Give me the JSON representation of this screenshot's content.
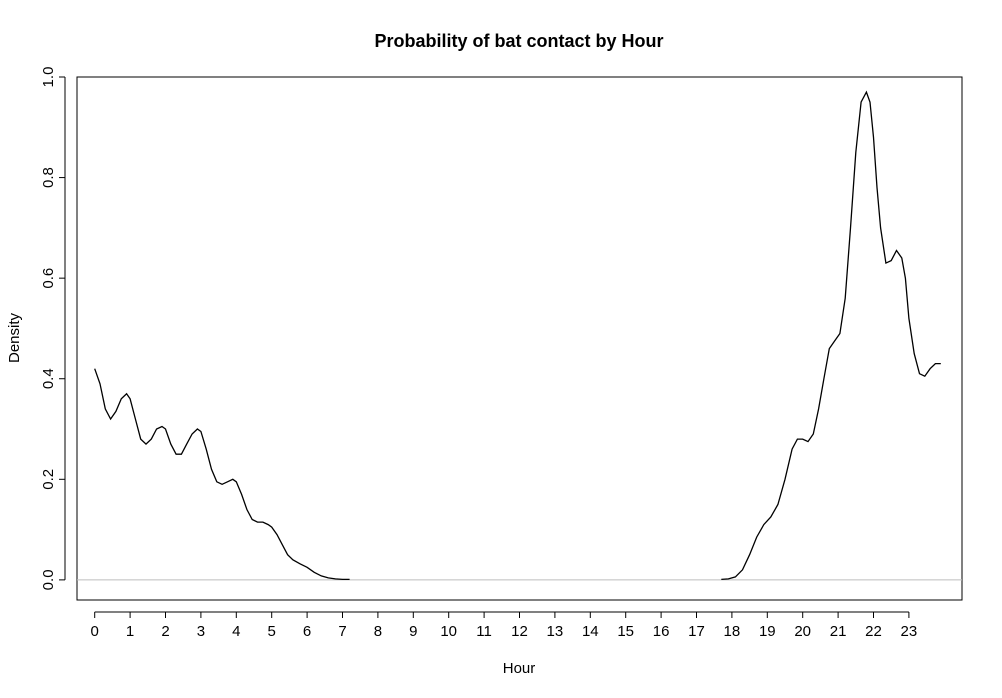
{
  "chart_data": {
    "type": "line",
    "title": "Probability of bat contact by Hour",
    "xlabel": "Hour",
    "ylabel": "Density",
    "xlim": [
      -0.5,
      24.5
    ],
    "ylim": [
      -0.04,
      1.0
    ],
    "x_ticks": [
      0,
      1,
      2,
      3,
      4,
      5,
      6,
      7,
      8,
      9,
      10,
      11,
      12,
      13,
      14,
      15,
      16,
      17,
      18,
      19,
      20,
      21,
      22,
      23
    ],
    "x_tick_labels": [
      "0",
      "1",
      "2",
      "3",
      "4",
      "5",
      "6",
      "7",
      "8",
      "9",
      "10",
      "11",
      "12",
      "13",
      "14",
      "15",
      "16",
      "17",
      "18",
      "19",
      "20",
      "21",
      "22",
      "23"
    ],
    "y_ticks": [
      0.0,
      0.2,
      0.4,
      0.6,
      0.8,
      1.0
    ],
    "y_tick_labels": [
      "0.0",
      "0.2",
      "0.4",
      "0.6",
      "0.8",
      "1.0"
    ],
    "baseline": 0,
    "series": [
      {
        "name": "density",
        "color": "#000000",
        "x": [
          0.0,
          0.15,
          0.3,
          0.45,
          0.6,
          0.75,
          0.9,
          1.0,
          1.15,
          1.3,
          1.45,
          1.6,
          1.75,
          1.9,
          2.0,
          2.15,
          2.3,
          2.45,
          2.6,
          2.75,
          2.9,
          3.0,
          3.15,
          3.3,
          3.45,
          3.6,
          3.75,
          3.9,
          4.0,
          4.15,
          4.3,
          4.45,
          4.6,
          4.75,
          4.9,
          5.0,
          5.15,
          5.3,
          5.45,
          5.6,
          5.8,
          6.0,
          6.2,
          6.4,
          6.6,
          6.8,
          7.0,
          7.2,
          17.7,
          17.9,
          18.1,
          18.3,
          18.5,
          18.7,
          18.9,
          19.1,
          19.3,
          19.5,
          19.7,
          19.85,
          20.0,
          20.15,
          20.3,
          20.45,
          20.6,
          20.75,
          20.9,
          21.05,
          21.2,
          21.35,
          21.5,
          21.65,
          21.8,
          21.9,
          22.0,
          22.1,
          22.2,
          22.35,
          22.5,
          22.65,
          22.8,
          22.9,
          23.0,
          23.15,
          23.3,
          23.45,
          23.6,
          23.75,
          23.9
        ],
        "y": [
          0.42,
          0.39,
          0.34,
          0.32,
          0.335,
          0.36,
          0.37,
          0.36,
          0.32,
          0.28,
          0.27,
          0.28,
          0.3,
          0.305,
          0.3,
          0.27,
          0.25,
          0.25,
          0.27,
          0.29,
          0.3,
          0.295,
          0.26,
          0.22,
          0.195,
          0.19,
          0.195,
          0.2,
          0.195,
          0.17,
          0.14,
          0.12,
          0.115,
          0.115,
          0.11,
          0.105,
          0.09,
          0.07,
          0.05,
          0.04,
          0.032,
          0.025,
          0.015,
          0.008,
          0.004,
          0.002,
          0.001,
          0.001,
          0.001,
          0.002,
          0.006,
          0.02,
          0.05,
          0.085,
          0.11,
          0.125,
          0.15,
          0.2,
          0.26,
          0.28,
          0.28,
          0.275,
          0.29,
          0.34,
          0.4,
          0.46,
          0.475,
          0.49,
          0.56,
          0.7,
          0.85,
          0.95,
          0.97,
          0.95,
          0.88,
          0.78,
          0.7,
          0.63,
          0.635,
          0.655,
          0.64,
          0.6,
          0.52,
          0.45,
          0.41,
          0.405,
          0.42,
          0.43,
          0.43
        ]
      }
    ]
  }
}
